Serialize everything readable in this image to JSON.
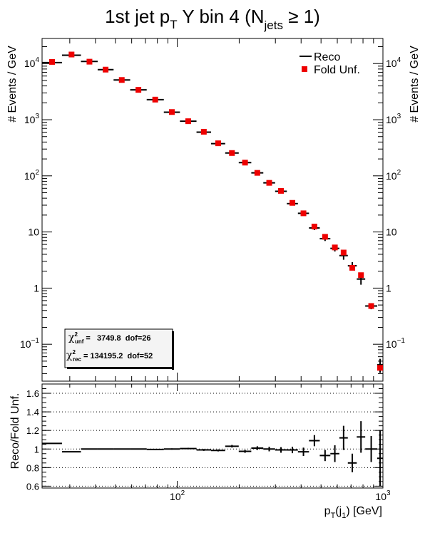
{
  "title": {
    "main": "1st jet p",
    "main_sub": "T",
    "rest": " Y bin 4 (N",
    "rest_sub": "jets",
    "tail": " ≥ 1)"
  },
  "legend": {
    "reco": "Reco",
    "unfold": "Fold Unf."
  },
  "stats": {
    "unf_sym": "χ",
    "unf_sup": "2",
    "unf_sub": "unf",
    "unf_text": " =   3749.8  dof=26",
    "rec_sym": "χ",
    "rec_sup": "2",
    "rec_sub": "rec",
    "rec_text": " = 134195.2  dof=52"
  },
  "axes": {
    "ylabel_top": "# Events / GeV",
    "ylabel_bottom": "Reco/Fold Unf.",
    "xlabel": {
      "p": "p",
      "p_sub": "T",
      "open": "(j",
      "j_sub": "1",
      "close": ") [GeV]"
    }
  },
  "colors": {
    "reco": "#000000",
    "unfold": "#ee0000",
    "stats_box": "#f0f0f0",
    "grid": "#000000"
  },
  "chart_data": [
    {
      "type": "scatter",
      "panel": "top",
      "xscale": "log",
      "yscale": "log",
      "xlim": [
        22,
        1000
      ],
      "ylim": [
        0.022,
        28000
      ],
      "x_major_ticks": [
        100,
        1000
      ],
      "x_tick_labels": [
        "10²",
        "10³"
      ],
      "y_major_ticks": [
        0.1,
        1,
        10,
        100,
        1000,
        10000
      ],
      "y_tick_labels": [
        "10⁻¹",
        "1",
        "10",
        "10²",
        "10³",
        "10⁴"
      ],
      "legend_position": "top-right",
      "series": [
        {
          "name": "Reco",
          "style": "error-bar",
          "points": [
            {
              "xlo": 22,
              "xhi": 27.5,
              "x": 24.6,
              "y": 10400,
              "err": 300
            },
            {
              "xlo": 27.5,
              "xhi": 34,
              "x": 30.6,
              "y": 14100,
              "err": 300
            },
            {
              "xlo": 34,
              "xhi": 41,
              "x": 37.4,
              "y": 10900,
              "err": 250
            },
            {
              "xlo": 41,
              "xhi": 49,
              "x": 44.8,
              "y": 7800,
              "err": 200
            },
            {
              "xlo": 49,
              "xhi": 59,
              "x": 53.7,
              "y": 5100,
              "err": 150
            },
            {
              "xlo": 59,
              "xhi": 71,
              "x": 64.7,
              "y": 3400,
              "err": 100
            },
            {
              "xlo": 71,
              "xhi": 86,
              "x": 78.1,
              "y": 2280,
              "err": 60
            },
            {
              "xlo": 86,
              "xhi": 103,
              "x": 94.1,
              "y": 1360,
              "err": 40
            },
            {
              "xlo": 103,
              "xhi": 124,
              "x": 113,
              "y": 940,
              "err": 30
            },
            {
              "xlo": 124,
              "xhi": 146,
              "x": 134.6,
              "y": 600,
              "err": 20
            },
            {
              "xlo": 146,
              "xhi": 171,
              "x": 158,
              "y": 375,
              "err": 12
            },
            {
              "xlo": 171,
              "xhi": 199,
              "x": 184.4,
              "y": 255,
              "err": 9
            },
            {
              "xlo": 199,
              "xhi": 229,
              "x": 213.5,
              "y": 172,
              "err": 7
            },
            {
              "xlo": 229,
              "xhi": 262,
              "x": 245,
              "y": 113,
              "err": 5
            },
            {
              "xlo": 262,
              "xhi": 299,
              "x": 279.9,
              "y": 75,
              "err": 4
            },
            {
              "xlo": 299,
              "xhi": 341,
              "x": 319.3,
              "y": 53,
              "err": 3
            },
            {
              "xlo": 341,
              "xhi": 386,
              "x": 362.8,
              "y": 32,
              "err": 2
            },
            {
              "xlo": 386,
              "xhi": 437,
              "x": 410.7,
              "y": 21.5,
              "err": 1.5
            },
            {
              "xlo": 437,
              "xhi": 493,
              "x": 464.2,
              "y": 11.8,
              "err": 1
            },
            {
              "xlo": 493,
              "xhi": 555,
              "x": 523.1,
              "y": 7.6,
              "err": 0.7
            },
            {
              "xlo": 555,
              "xhi": 614,
              "x": 583.8,
              "y": 5.1,
              "err": 0.6
            },
            {
              "xlo": 614,
              "xhi": 675,
              "x": 643.8,
              "y": 3.8,
              "err": 0.6
            },
            {
              "xlo": 675,
              "xhi": 746,
              "x": 709.6,
              "y": 2.5,
              "err": 0.4
            },
            {
              "xlo": 746,
              "xhi": 820,
              "x": 782.1,
              "y": 1.45,
              "err": 0.3
            },
            {
              "xlo": 820,
              "xhi": 938,
              "x": 877,
              "y": 0.48,
              "err": 0.06
            },
            {
              "xlo": 938,
              "xhi": 1000,
              "x": 968.5,
              "y": 0.043,
              "err": 0.012
            }
          ]
        },
        {
          "name": "Fold Unf.",
          "style": "square-marker",
          "points": [
            {
              "x": 24.6,
              "y": 10700
            },
            {
              "x": 30.6,
              "y": 14500
            },
            {
              "x": 37.4,
              "y": 10800
            },
            {
              "x": 44.8,
              "y": 7800
            },
            {
              "x": 53.7,
              "y": 5100
            },
            {
              "x": 64.7,
              "y": 3400
            },
            {
              "x": 78.1,
              "y": 2280
            },
            {
              "x": 94.1,
              "y": 1370
            },
            {
              "x": 113,
              "y": 940
            },
            {
              "x": 134.6,
              "y": 610
            },
            {
              "x": 158,
              "y": 380
            },
            {
              "x": 184.4,
              "y": 255
            },
            {
              "x": 213.5,
              "y": 172
            },
            {
              "x": 245,
              "y": 113
            },
            {
              "x": 279.9,
              "y": 75
            },
            {
              "x": 319.3,
              "y": 54
            },
            {
              "x": 362.8,
              "y": 33
            },
            {
              "x": 410.7,
              "y": 21.5
            },
            {
              "x": 464.2,
              "y": 12.5
            },
            {
              "x": 523.1,
              "y": 8.2
            },
            {
              "x": 583.8,
              "y": 5.3
            },
            {
              "x": 643.8,
              "y": 4.3
            },
            {
              "x": 709.6,
              "y": 2.3
            },
            {
              "x": 782.1,
              "y": 1.7
            },
            {
              "x": 877,
              "y": 0.48
            },
            {
              "x": 968.5,
              "y": 0.038
            }
          ]
        }
      ]
    },
    {
      "type": "scatter",
      "panel": "ratio",
      "xscale": "log",
      "xlim": [
        22,
        1000
      ],
      "ylim": [
        0.58,
        1.7
      ],
      "y_ticks": [
        0.6,
        0.8,
        1.0,
        1.2,
        1.4,
        1.6
      ],
      "y_tick_labels": [
        "0.6",
        "0.8",
        "1",
        "1.2",
        "1.4",
        "1.6"
      ],
      "grid": true,
      "series": [
        {
          "name": "Reco/Fold Unf.",
          "style": "error-bar",
          "points": [
            {
              "xlo": 22,
              "xhi": 27.5,
              "y": 1.06,
              "err": 0.005
            },
            {
              "xlo": 27.5,
              "xhi": 34,
              "y": 0.97,
              "err": 0.005
            },
            {
              "xlo": 34,
              "xhi": 41,
              "y": 1.0,
              "err": 0.005
            },
            {
              "xlo": 41,
              "xhi": 49,
              "y": 1.0,
              "err": 0.005
            },
            {
              "xlo": 49,
              "xhi": 59,
              "y": 1.0,
              "err": 0.005
            },
            {
              "xlo": 59,
              "xhi": 71,
              "y": 1.0,
              "err": 0.005
            },
            {
              "xlo": 71,
              "xhi": 86,
              "y": 0.995,
              "err": 0.006
            },
            {
              "xlo": 86,
              "xhi": 103,
              "y": 1.0,
              "err": 0.007
            },
            {
              "xlo": 103,
              "xhi": 124,
              "y": 1.005,
              "err": 0.008
            },
            {
              "xlo": 124,
              "xhi": 146,
              "y": 0.99,
              "err": 0.01
            },
            {
              "xlo": 146,
              "xhi": 171,
              "y": 0.985,
              "err": 0.011
            },
            {
              "xlo": 171,
              "xhi": 199,
              "y": 1.03,
              "err": 0.014
            },
            {
              "xlo": 199,
              "xhi": 229,
              "y": 0.975,
              "err": 0.016
            },
            {
              "xlo": 229,
              "xhi": 262,
              "y": 1.01,
              "err": 0.02
            },
            {
              "xlo": 262,
              "xhi": 299,
              "y": 1.0,
              "err": 0.025
            },
            {
              "xlo": 299,
              "xhi": 341,
              "y": 0.99,
              "err": 0.03
            },
            {
              "xlo": 341,
              "xhi": 386,
              "y": 0.99,
              "err": 0.035
            },
            {
              "xlo": 386,
              "xhi": 437,
              "y": 0.97,
              "err": 0.045
            },
            {
              "xlo": 437,
              "xhi": 493,
              "y": 1.09,
              "err": 0.06
            },
            {
              "xlo": 493,
              "xhi": 555,
              "y": 0.93,
              "err": 0.06
            },
            {
              "xlo": 555,
              "xhi": 614,
              "y": 0.95,
              "err": 0.09
            },
            {
              "xlo": 614,
              "xhi": 675,
              "y": 1.12,
              "err": 0.13
            },
            {
              "xlo": 675,
              "xhi": 746,
              "y": 0.85,
              "err": 0.1
            },
            {
              "xlo": 746,
              "xhi": 820,
              "y": 1.13,
              "err": 0.17
            },
            {
              "xlo": 820,
              "xhi": 938,
              "y": 1.0,
              "err": 0.14
            },
            {
              "xlo": 938,
              "xhi": 1000,
              "y": 0.9,
              "err": 0.3
            }
          ]
        }
      ]
    }
  ]
}
